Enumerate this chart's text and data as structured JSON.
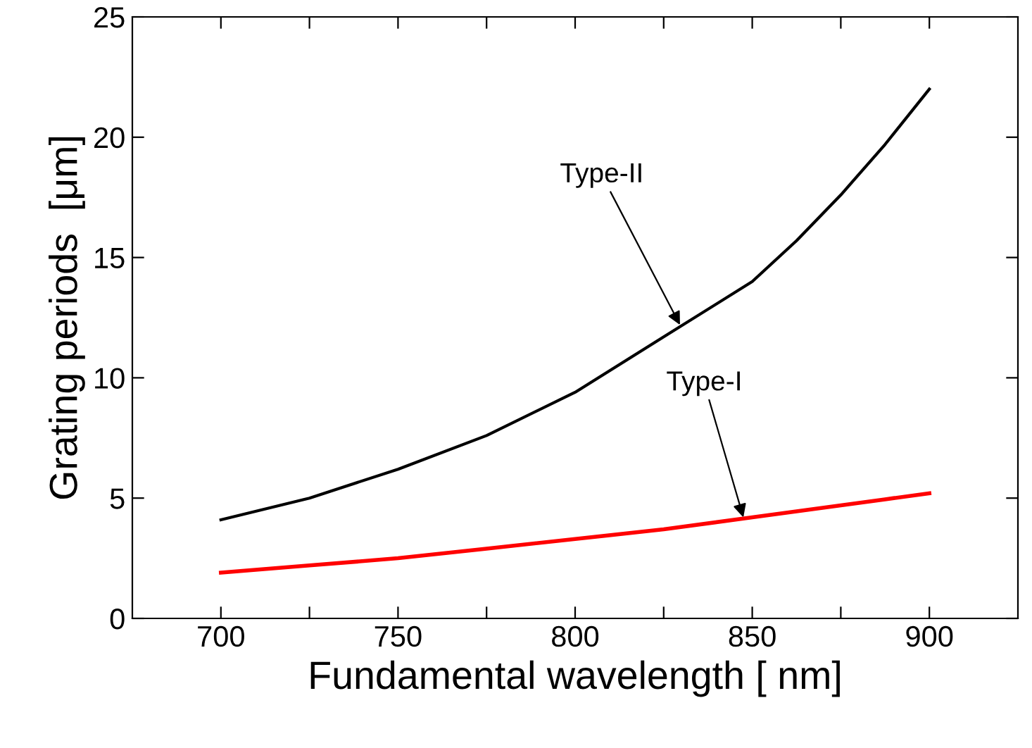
{
  "chart_data": {
    "type": "line",
    "xlabel": "Fundamental wavelength [ nm]",
    "ylabel": "Grating periods  [μm]",
    "x": [
      700,
      725,
      750,
      775,
      800,
      825,
      850,
      862.5,
      875,
      887.5,
      900
    ],
    "series": [
      {
        "color": "#000000",
        "values": [
          4.1,
          5.0,
          6.2,
          7.6,
          9.4,
          11.7,
          14.0,
          15.7,
          17.6,
          19.7,
          22.0
        ]
      },
      {
        "color": "#ff0000",
        "values": [
          1.9,
          2.2,
          2.5,
          2.9,
          3.3,
          3.7,
          4.2,
          4.45,
          4.7,
          4.95,
          5.2
        ]
      }
    ],
    "annotations": [
      {
        "text": "Type-II",
        "x": 829.6,
        "y": 12.2
      },
      {
        "text": "Type-I",
        "x": 847.5,
        "y": 4.2
      }
    ],
    "xlim": [
      675,
      925
    ],
    "ylim": [
      0,
      25
    ],
    "xticks": [
      700,
      {
        "value": 725,
        "label": null
      },
      750,
      {
        "value": 775,
        "label": null
      },
      800,
      {
        "value": 825,
        "label": null
      },
      850,
      {
        "value": 875,
        "label": null
      },
      900
    ],
    "yticks": [
      0,
      5,
      10,
      15,
      20,
      25
    ],
    "grid": false,
    "legend": false,
    "marker": "none",
    "line_style": "solid"
  }
}
